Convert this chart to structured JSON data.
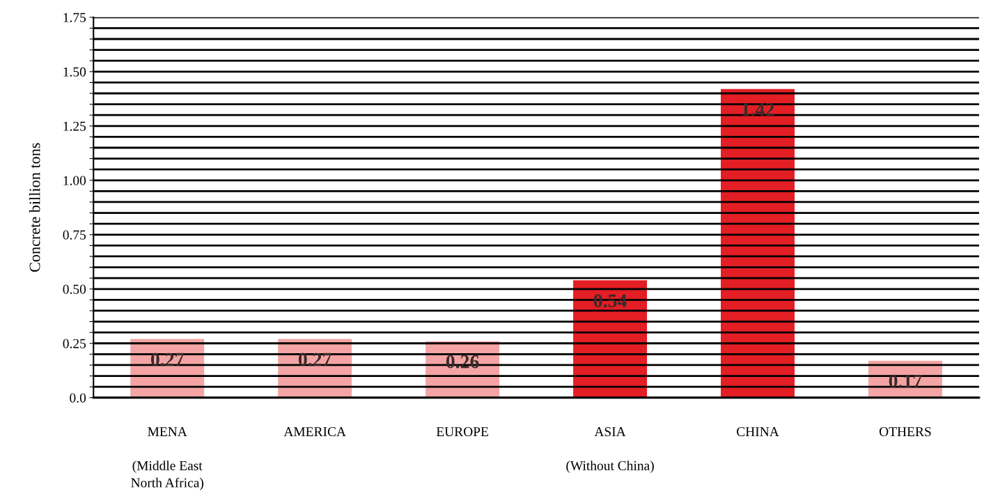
{
  "chart_data": {
    "type": "bar",
    "ylabel": "Concrete billion tons",
    "categories": [
      "MENA\n\n(Middle East\nNorth Africa)",
      "AMERICA",
      "EUROPE",
      "ASIA\n\n(Without China)",
      "CHINA",
      "OTHERS"
    ],
    "values": [
      0.27,
      0.27,
      0.26,
      0.54,
      1.42,
      0.17
    ],
    "colors": [
      "#f4a4a4",
      "#f4a4a4",
      "#f4a4a4",
      "#e31e24",
      "#e31e24",
      "#f4a4a4"
    ],
    "data_labels": true,
    "grid": "y",
    "ylim": [
      0,
      1.75
    ],
    "yticks": [
      {
        "value": 0,
        "label": "0.0"
      },
      {
        "value": 0.05,
        "label": null
      },
      {
        "value": 0.1,
        "label": null
      },
      {
        "value": 0.15,
        "label": null
      },
      {
        "value": 0.2,
        "label": null
      },
      {
        "value": 0.25,
        "label": "0.25"
      },
      {
        "value": 0.3,
        "label": null
      },
      {
        "value": 0.35,
        "label": null
      },
      {
        "value": 0.4,
        "label": null
      },
      {
        "value": 0.45,
        "label": null
      },
      {
        "value": 0.5,
        "label": "0.50"
      },
      {
        "value": 0.55,
        "label": null
      },
      {
        "value": 0.6,
        "label": null
      },
      {
        "value": 0.65,
        "label": null
      },
      {
        "value": 0.7,
        "label": null
      },
      {
        "value": 0.75,
        "label": "0.75"
      },
      {
        "value": 0.8,
        "label": null
      },
      {
        "value": 0.85,
        "label": null
      },
      {
        "value": 0.9,
        "label": null
      },
      {
        "value": 0.95,
        "label": null
      },
      {
        "value": 1.0,
        "label": "1.00"
      },
      {
        "value": 1.05,
        "label": null
      },
      {
        "value": 1.1,
        "label": null
      },
      {
        "value": 1.15,
        "label": null
      },
      {
        "value": 1.2,
        "label": null
      },
      {
        "value": 1.25,
        "label": "1.25"
      },
      {
        "value": 1.3,
        "label": null
      },
      {
        "value": 1.35,
        "label": null
      },
      {
        "value": 1.4,
        "label": null
      },
      {
        "value": 1.45,
        "label": null
      },
      {
        "value": 1.5,
        "label": "1.50"
      },
      {
        "value": 1.55,
        "label": null
      },
      {
        "value": 1.6,
        "label": null
      },
      {
        "value": 1.65,
        "label": null
      },
      {
        "value": 1.7,
        "label": null
      },
      {
        "value": 1.75,
        "label": "1.75"
      }
    ]
  }
}
